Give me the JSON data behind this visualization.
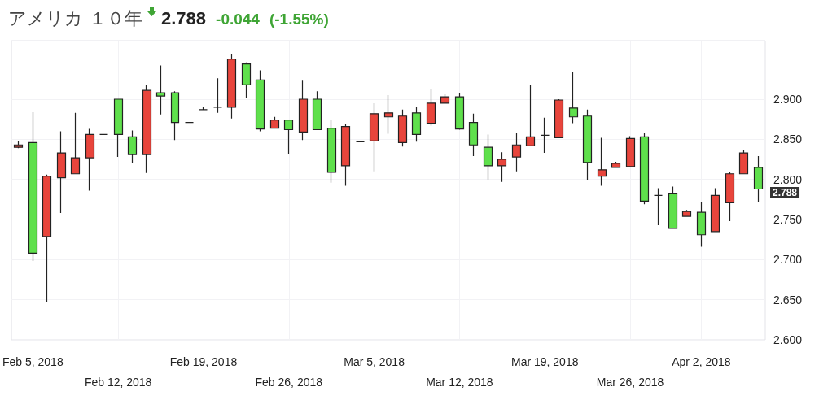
{
  "chart_data": {
    "type": "candlestick",
    "title": "アメリカ １０年",
    "annotations": [
      "2.788",
      "-0.044",
      "(-1.55%)"
    ],
    "categories": [
      null,
      "Feb 5, 2018",
      null,
      null,
      null,
      null,
      null,
      "Feb 12, 2018",
      null,
      null,
      null,
      null,
      null,
      "Feb 19, 2018",
      null,
      null,
      null,
      null,
      null,
      "Feb 26, 2018",
      null,
      null,
      null,
      null,
      null,
      "Mar 5, 2018",
      null,
      null,
      null,
      null,
      null,
      "Mar 12, 2018",
      null,
      null,
      null,
      null,
      null,
      "Mar 19, 2018",
      null,
      null,
      null,
      null,
      null,
      "Mar 26, 2018",
      null,
      null,
      null,
      null,
      "Apr 2, 2018",
      null,
      null,
      null,
      null
    ],
    "ohlc": [
      [
        2.84,
        2.848,
        2.839,
        2.843
      ],
      [
        2.846,
        2.884,
        2.698,
        2.708
      ],
      [
        2.729,
        2.806,
        2.647,
        2.804
      ],
      [
        2.802,
        2.86,
        2.758,
        2.833
      ],
      [
        2.807,
        2.883,
        2.807,
        2.827
      ],
      [
        2.827,
        2.863,
        2.786,
        2.856
      ],
      [
        2.856,
        2.856,
        2.856,
        2.856
      ],
      [
        2.9,
        2.9,
        2.828,
        2.856
      ],
      [
        2.853,
        2.861,
        2.821,
        2.831
      ],
      [
        2.831,
        2.918,
        2.808,
        2.911
      ],
      [
        2.908,
        2.942,
        2.881,
        2.904
      ],
      [
        2.908,
        2.91,
        2.849,
        2.871
      ],
      [
        2.871,
        2.871,
        2.871,
        2.871
      ],
      [
        2.887,
        2.89,
        2.887,
        2.887
      ],
      [
        2.89,
        2.926,
        2.883,
        2.89
      ],
      [
        2.89,
        2.956,
        2.876,
        2.95
      ],
      [
        2.944,
        2.946,
        2.902,
        2.918
      ],
      [
        2.924,
        2.936,
        2.86,
        2.863
      ],
      [
        2.864,
        2.878,
        2.864,
        2.874
      ],
      [
        2.874,
        2.874,
        2.831,
        2.862
      ],
      [
        2.859,
        2.923,
        2.849,
        2.9
      ],
      [
        2.9,
        2.91,
        2.862,
        2.862
      ],
      [
        2.864,
        2.874,
        2.796,
        2.809
      ],
      [
        2.817,
        2.869,
        2.792,
        2.866
      ],
      [
        2.847,
        2.847,
        2.847,
        2.847
      ],
      [
        2.848,
        2.895,
        2.81,
        2.882
      ],
      [
        2.878,
        2.905,
        2.857,
        2.883
      ],
      [
        2.846,
        2.887,
        2.841,
        2.879
      ],
      [
        2.883,
        2.89,
        2.847,
        2.856
      ],
      [
        2.87,
        2.913,
        2.867,
        2.895
      ],
      [
        2.895,
        2.906,
        2.895,
        2.903
      ],
      [
        2.903,
        2.908,
        2.862,
        2.863
      ],
      [
        2.871,
        2.882,
        2.829,
        2.843
      ],
      [
        2.84,
        2.856,
        2.8,
        2.817
      ],
      [
        2.817,
        2.834,
        2.797,
        2.825
      ],
      [
        2.828,
        2.858,
        2.81,
        2.843
      ],
      [
        2.842,
        2.918,
        2.842,
        2.853
      ],
      [
        2.855,
        2.877,
        2.833,
        2.855
      ],
      [
        2.852,
        2.9,
        2.852,
        2.899
      ],
      [
        2.889,
        2.934,
        2.87,
        2.878
      ],
      [
        2.879,
        2.887,
        2.799,
        2.821
      ],
      [
        2.804,
        2.852,
        2.792,
        2.812
      ],
      [
        2.815,
        2.822,
        2.815,
        2.82
      ],
      [
        2.816,
        2.854,
        2.816,
        2.851
      ],
      [
        2.853,
        2.858,
        2.769,
        2.773
      ],
      [
        2.78,
        2.789,
        2.743,
        2.78
      ],
      [
        2.782,
        2.791,
        2.739,
        2.739
      ],
      [
        2.754,
        2.762,
        2.754,
        2.76
      ],
      [
        2.759,
        2.772,
        2.716,
        2.731
      ],
      [
        2.735,
        2.789,
        2.735,
        2.78
      ],
      [
        2.771,
        2.809,
        2.748,
        2.807
      ],
      [
        2.807,
        2.837,
        2.807,
        2.833
      ],
      [
        2.815,
        2.829,
        2.772,
        2.788
      ]
    ],
    "colors": [
      "#e8453c",
      "#5fe04c",
      "#e8453c",
      "#e8453c",
      "#e8453c",
      "#e8453c",
      "#222222",
      "#5fe04c",
      "#5fe04c",
      "#e8453c",
      "#5fe04c",
      "#5fe04c",
      "#222222",
      "#222222",
      "#222222",
      "#e8453c",
      "#5fe04c",
      "#5fe04c",
      "#e8453c",
      "#5fe04c",
      "#e8453c",
      "#5fe04c",
      "#5fe04c",
      "#e8453c",
      "#222222",
      "#e8453c",
      "#e8453c",
      "#e8453c",
      "#5fe04c",
      "#e8453c",
      "#e8453c",
      "#5fe04c",
      "#5fe04c",
      "#5fe04c",
      "#e8453c",
      "#e8453c",
      "#e8453c",
      "#222222",
      "#e8453c",
      "#5fe04c",
      "#5fe04c",
      "#e8453c",
      "#e8453c",
      "#e8453c",
      "#5fe04c",
      "#222222",
      "#5fe04c",
      "#e8453c",
      "#5fe04c",
      "#e8453c",
      "#e8453c",
      "#e8453c",
      "#5fe04c"
    ],
    "ylim": [
      2.6,
      2.973
    ],
    "yticks": [
      {
        "value": 2.6,
        "label": "2.600"
      },
      {
        "value": 2.65,
        "label": "2.650"
      },
      {
        "value": 2.7,
        "label": "2.700"
      },
      {
        "value": 2.75,
        "label": "2.750"
      },
      {
        "value": 2.8,
        "label": "2.800"
      },
      {
        "value": 2.85,
        "label": "2.850"
      },
      {
        "value": 2.9,
        "label": "2.900"
      }
    ],
    "ref_lines": [
      {
        "axis": "y",
        "value": 2.788,
        "label": "2.788",
        "color": "#333333"
      }
    ],
    "grid": true
  }
}
